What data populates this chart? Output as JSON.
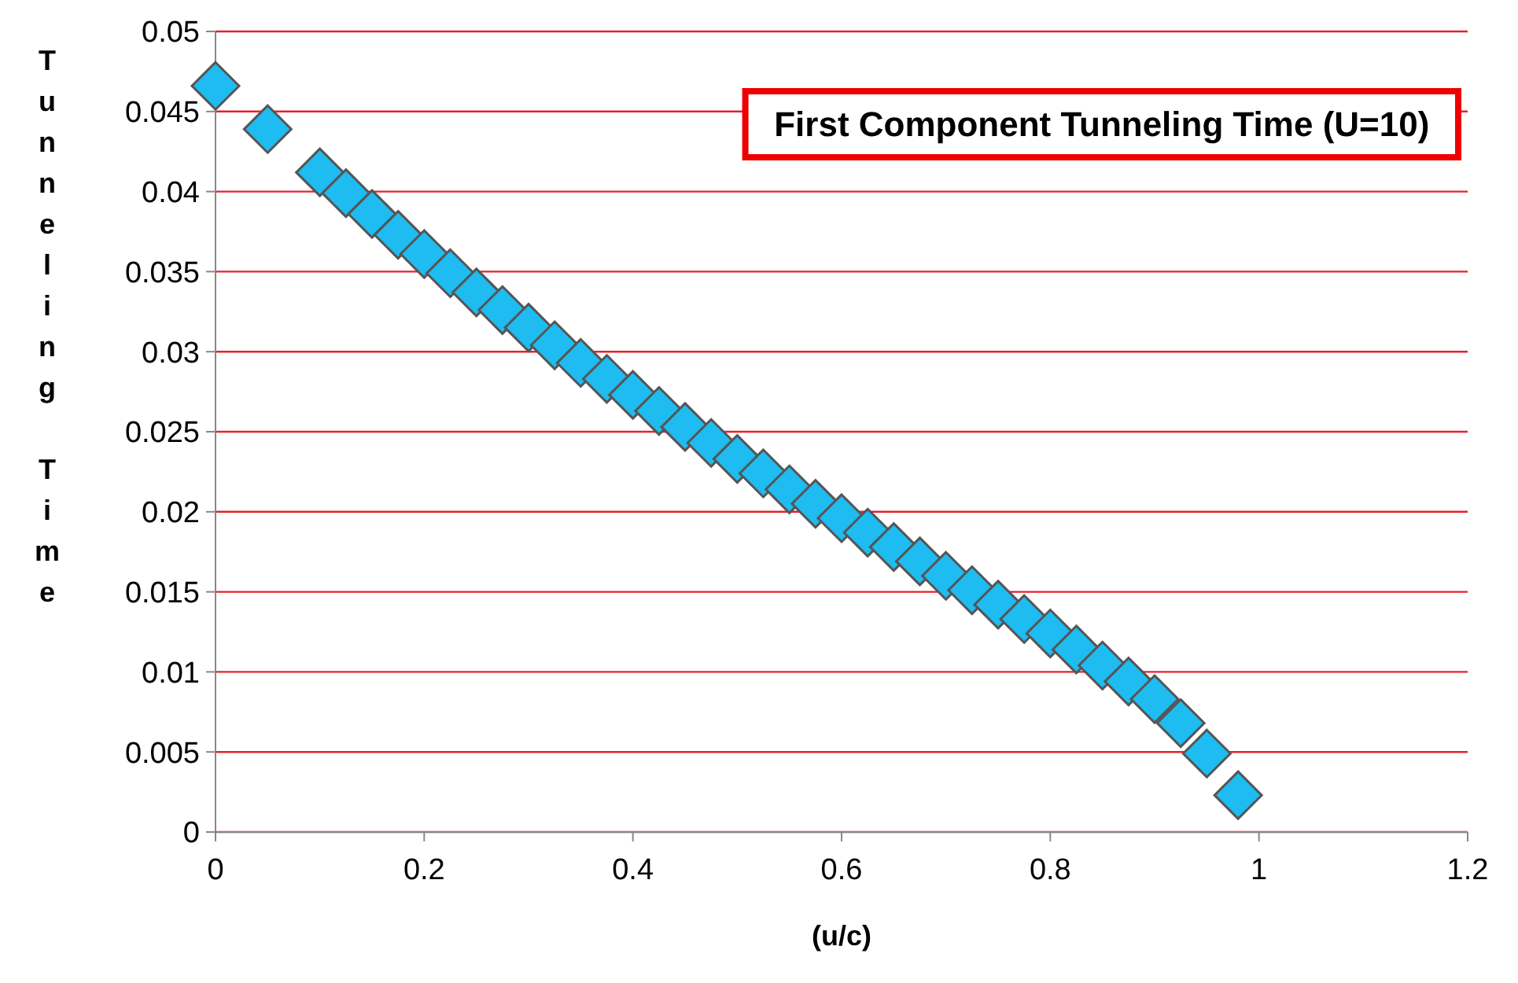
{
  "chart_data": {
    "type": "scatter",
    "title": "First Component Tunneling Time (U=10)",
    "xlabel": "(u/c)",
    "ylabel": "Tunneling Time",
    "x": [
      0,
      0.05,
      0.1,
      0.125,
      0.15,
      0.175,
      0.2,
      0.225,
      0.25,
      0.275,
      0.3,
      0.325,
      0.35,
      0.375,
      0.4,
      0.425,
      0.45,
      0.475,
      0.5,
      0.525,
      0.55,
      0.575,
      0.6,
      0.625,
      0.65,
      0.675,
      0.7,
      0.725,
      0.75,
      0.775,
      0.8,
      0.825,
      0.85,
      0.875,
      0.9,
      0.925,
      0.95,
      0.98
    ],
    "series": [
      {
        "color": "#1ebcf0",
        "values": [
          0.0466,
          0.0439,
          0.0412,
          0.0399,
          0.0386,
          0.0373,
          0.0361,
          0.0349,
          0.0337,
          0.0326,
          0.0315,
          0.0304,
          0.0293,
          0.0283,
          0.0273,
          0.0263,
          0.0253,
          0.0243,
          0.0233,
          0.0224,
          0.0214,
          0.0205,
          0.0196,
          0.0187,
          0.0178,
          0.0169,
          0.016,
          0.0151,
          0.0142,
          0.0133,
          0.0124,
          0.0114,
          0.0104,
          0.0094,
          0.0083,
          0.0068,
          0.0049,
          0.0023
        ]
      }
    ],
    "xlim": [
      0,
      1.2
    ],
    "xticks": [
      0,
      0.2,
      0.4,
      0.6,
      0.8,
      1,
      1.2
    ],
    "ylim": [
      0,
      0.05
    ],
    "yticks": [
      0,
      0.005,
      0.01,
      0.015,
      0.02,
      0.025,
      0.03,
      0.035,
      0.04,
      0.045,
      0.05
    ],
    "grid": "y",
    "marker": "diamond"
  }
}
